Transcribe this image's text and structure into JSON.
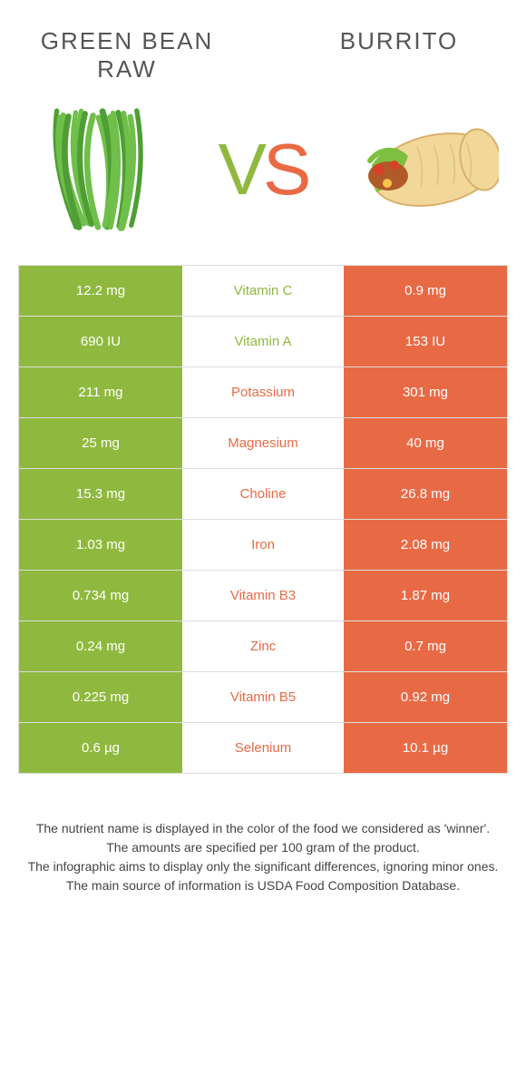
{
  "colors": {
    "left": "#8fb93e",
    "right": "#e86a45",
    "left_dark": "#6b9a2a",
    "right_dark": "#c94f2f",
    "bean_green": "#6fbf4a",
    "bean_dark": "#4e9e34",
    "tortilla": "#f2d79a",
    "tortilla_edge": "#d8b06a",
    "meat": "#b05a2a",
    "lettuce": "#7fbf3f",
    "tomato": "#d84028",
    "cheese": "#f5c54a"
  },
  "title_left": "Green bean raw",
  "title_right": "Burrito",
  "vs_text": "VS",
  "rows": [
    {
      "name": "Vitamin C",
      "left": "12.2 mg",
      "right": "0.9 mg",
      "winner": "left"
    },
    {
      "name": "Vitamin A",
      "left": "690 IU",
      "right": "153 IU",
      "winner": "left"
    },
    {
      "name": "Potassium",
      "left": "211 mg",
      "right": "301 mg",
      "winner": "right"
    },
    {
      "name": "Magnesium",
      "left": "25 mg",
      "right": "40 mg",
      "winner": "right"
    },
    {
      "name": "Choline",
      "left": "15.3 mg",
      "right": "26.8 mg",
      "winner": "right"
    },
    {
      "name": "Iron",
      "left": "1.03 mg",
      "right": "2.08 mg",
      "winner": "right"
    },
    {
      "name": "Vitamin B3",
      "left": "0.734 mg",
      "right": "1.87 mg",
      "winner": "right"
    },
    {
      "name": "Zinc",
      "left": "0.24 mg",
      "right": "0.7 mg",
      "winner": "right"
    },
    {
      "name": "Vitamin B5",
      "left": "0.225 mg",
      "right": "0.92 mg",
      "winner": "right"
    },
    {
      "name": "Selenium",
      "left": "0.6 µg",
      "right": "10.1 µg",
      "winner": "right"
    }
  ],
  "footnotes": [
    "The nutrient name is displayed in the color of the food we considered as 'winner'.",
    "The amounts are specified per 100 gram of the product.",
    "The infographic aims to display only the significant differences, ignoring minor ones.",
    "The main source of information is USDA Food Composition Database."
  ]
}
